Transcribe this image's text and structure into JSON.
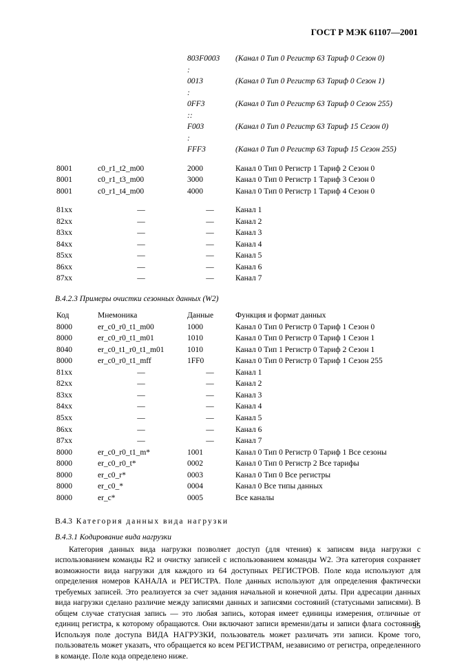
{
  "header": "ГОСТ Р МЭК 61107—2001",
  "table1": {
    "top_rows": [
      {
        "code": "",
        "mnem": "",
        "data": "803F0003",
        "func": "(Канал 0 Тип 0 Регистр 63 Тариф 0 Сезон 0)",
        "italic": true,
        "dot": ":"
      },
      {
        "code": "",
        "mnem": "",
        "data": "0013",
        "func": "(Канал 0 Тип 0 Регистр 63 Тариф 0 Сезон 1)",
        "italic": true,
        "dot": ":"
      },
      {
        "code": "",
        "mnem": "",
        "data": "0FF3",
        "func": "(Канал 0 Тип 0 Регистр 63 Тариф 0 Сезон 255)",
        "italic": true,
        "dot": "::"
      },
      {
        "code": "",
        "mnem": "",
        "data": "F003",
        "func": "(Канал 0 Тип 0 Регистр 63 Тариф 15 Сезон 0)",
        "italic": true,
        "dot": ":"
      },
      {
        "code": "",
        "mnem": "",
        "data": "FFF3",
        "func": "(Канал 0 Тип 0 Регистр 63 Тариф 15 Сезон 255)",
        "italic": true,
        "dot": ""
      }
    ],
    "mid_rows": [
      {
        "code": "8001",
        "mnem": "c0_r1_t2_m00",
        "data": "2000",
        "func": "Канал 0 Тип 0 Регистр 1 Тариф 2 Сезон 0"
      },
      {
        "code": "8001",
        "mnem": "c0_r1_t3_m00",
        "data": "3000",
        "func": "Канал 0 Тип 0 Регистр 1 Тариф 3 Сезон 0"
      },
      {
        "code": "8001",
        "mnem": "c0_r1_t4_m00",
        "data": "4000",
        "func": "Канал 0 Тип 0 Регистр 1 Тариф 4 Сезон 0"
      }
    ],
    "chan_rows": [
      {
        "code": "81xx",
        "mnem": "—",
        "data": "—",
        "func": "Канал 1"
      },
      {
        "code": "82xx",
        "mnem": "—",
        "data": "—",
        "func": "Канал 2"
      },
      {
        "code": "83xx",
        "mnem": "—",
        "data": "—",
        "func": "Канал 3"
      },
      {
        "code": "84xx",
        "mnem": "—",
        "data": "—",
        "func": "Канал 4"
      },
      {
        "code": "85xx",
        "mnem": "—",
        "data": "—",
        "func": "Канал 5"
      },
      {
        "code": "86xx",
        "mnem": "—",
        "data": "—",
        "func": "Канал 6"
      },
      {
        "code": "87xx",
        "mnem": "—",
        "data": "—",
        "func": "Канал 7"
      }
    ]
  },
  "section_b423": "В.4.2.3  Примеры очистки сезонных данных (W2)",
  "table2": {
    "header": {
      "code": "Код",
      "mnem": "Мнемоника",
      "data": "Данные",
      "func": "Функция и формат данных"
    },
    "rows": [
      {
        "code": "8000",
        "mnem": "er_c0_r0_t1_m00",
        "data": "1000",
        "func": "Канал 0 Тип 0 Регистр 0 Тариф 1 Сезон 0"
      },
      {
        "code": "8000",
        "mnem": "er_c0_r0_t1_m01",
        "data": "1010",
        "func": "Канал 0 Тип 0 Регистр 0 Тариф 1 Сезон 1"
      },
      {
        "code": "8040",
        "mnem": "er_c0_t1_r0_t1_m01",
        "data": "1010",
        "func": "Канал 0 Тип 1 Регистр 0 Тариф 2 Сезон 1"
      },
      {
        "code": "8000",
        "mnem": "er_c0_r0_t1_mff",
        "data": "1FF0",
        "func": "Канал 0 Тип 0 Регистр 0 Тариф 1 Сезон 255"
      },
      {
        "code": "81xx",
        "mnem": "—",
        "data": "—",
        "func": "Канал 1"
      },
      {
        "code": "82xx",
        "mnem": "—",
        "data": "—",
        "func": "Канал 2"
      },
      {
        "code": "83xx",
        "mnem": "—",
        "data": "—",
        "func": "Канал 3"
      },
      {
        "code": "84xx",
        "mnem": "—",
        "data": "—",
        "func": "Канал 4"
      },
      {
        "code": "85xx",
        "mnem": "—",
        "data": "—",
        "func": "Канал 5"
      },
      {
        "code": "86xx",
        "mnem": "—",
        "data": "—",
        "func": "Канал 6"
      },
      {
        "code": "87xx",
        "mnem": "—",
        "data": "—",
        "func": "Канал 7"
      },
      {
        "code": "8000",
        "mnem": "er_c0_r0_t1_m*",
        "data": "1001",
        "func": "Канал 0 Тип 0 Регистр 0 Тариф 1 Все сезоны"
      },
      {
        "code": "8000",
        "mnem": "er_c0_r0_t*",
        "data": "0002",
        "func": "Канал 0 Тип 0 Регистр 2 Все тарифы"
      },
      {
        "code": "8000",
        "mnem": "er_c0_r*",
        "data": "0003",
        "func": "Канал 0 Тип 0 Все регистры"
      },
      {
        "code": "8000",
        "mnem": "er_c0_*",
        "data": "0004",
        "func": "Канал 0 Все типы данных"
      },
      {
        "code": "8000",
        "mnem": "er_c*",
        "data": "0005",
        "func": "Все каналы"
      }
    ]
  },
  "section_b43": {
    "num": "В.4.3",
    "text": "Категория данных вида нагрузки"
  },
  "section_b431": "В.4.3.1  Кодирование вида нагрузки",
  "paragraph": "Категория данных вида нагрузки позволяет доступ (для чтения) к записям вида нагрузки с использованием команды R2 и очистку записей с использованием команды W2. Эта категория сохраняет возможности вида нагрузки для каждого из 64 доступных РЕГИСТРОВ. Поле кода используют для определения номеров КАНАЛА и РЕГИСТРА. Поле данных используют для определения фактически требуемых записей. Это реализуется за счет задания начальной и конечной даты. При адресации данных вида нагрузки сделано различие между записями данных и записями состояний (статусными записями). В общем случае статусная запись — это любая запись, которая имеет единицы измерения, отличные от единиц регистра, к которому обращаются. Они включают записи времени/даты и записи флага состояний. Используя поле доступа ВИДА НАГРУЗКИ, пользователь может различать эти записи. Кроме того, пользователь может указать, что обращается ко всем РЕГИСТРАМ, независимо от регистра, определенного в команде. Поле кода определено ниже.",
  "pagenum": "35"
}
